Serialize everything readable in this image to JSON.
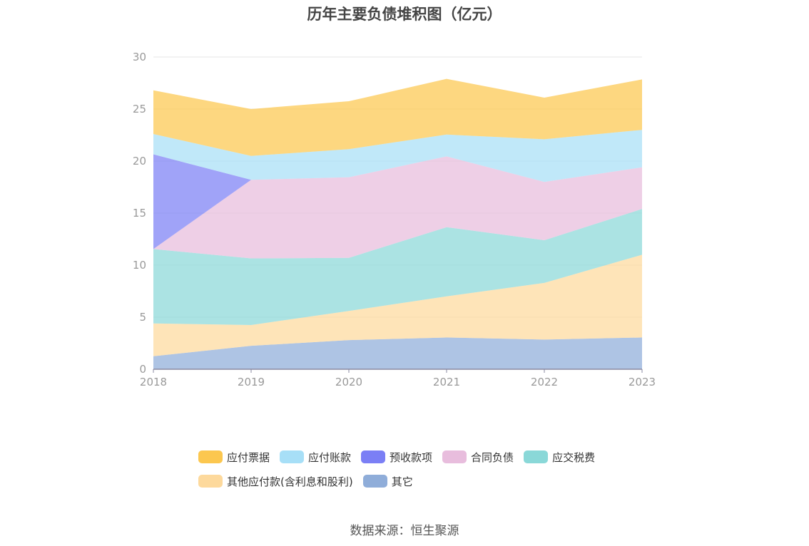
{
  "chart_data": {
    "type": "area",
    "stacked": true,
    "title": "历年主要负债堆积图（亿元）",
    "x": [
      "2018",
      "2019",
      "2020",
      "2021",
      "2022",
      "2023"
    ],
    "ylim": [
      0,
      30
    ],
    "yticks": [
      0,
      5,
      10,
      15,
      20,
      25,
      30
    ],
    "grid": true,
    "legend_position": "bottom",
    "series": [
      {
        "name": "其它",
        "color": "#8fadd9",
        "values": [
          1.25,
          2.25,
          2.8,
          3.05,
          2.85,
          3.05
        ]
      },
      {
        "name": "其他应付款(含利息和股利)",
        "color": "#fdd99c",
        "values": [
          3.15,
          2.0,
          2.8,
          3.95,
          5.45,
          7.95
        ]
      },
      {
        "name": "应交税费",
        "color": "#8ad8d8",
        "values": [
          7.15,
          6.4,
          5.1,
          6.65,
          4.1,
          4.4
        ]
      },
      {
        "name": "合同负债",
        "color": "#e8bddd",
        "values": [
          0,
          7.55,
          7.75,
          6.8,
          5.6,
          4.0
        ]
      },
      {
        "name": "预收款项",
        "color": "#7b7ff5",
        "values": [
          9.1,
          0,
          0,
          0,
          0,
          0
        ]
      },
      {
        "name": "应付账款",
        "color": "#a7dff7",
        "values": [
          1.95,
          2.3,
          2.7,
          2.1,
          4.1,
          3.6
        ]
      },
      {
        "name": "应付票据",
        "color": "#fcc74f",
        "values": [
          4.2,
          4.5,
          4.6,
          5.35,
          4.0,
          4.85
        ]
      }
    ],
    "legend_order": [
      "应付票据",
      "应付账款",
      "预收款项",
      "合同负债",
      "应交税费",
      "其他应付款(含利息和股利)",
      "其它"
    ]
  },
  "source": "数据来源：恒生聚源",
  "colors": {
    "axis": "#8a8aa0",
    "grid": "#e6e6e6",
    "tick_text": "#999999"
  }
}
